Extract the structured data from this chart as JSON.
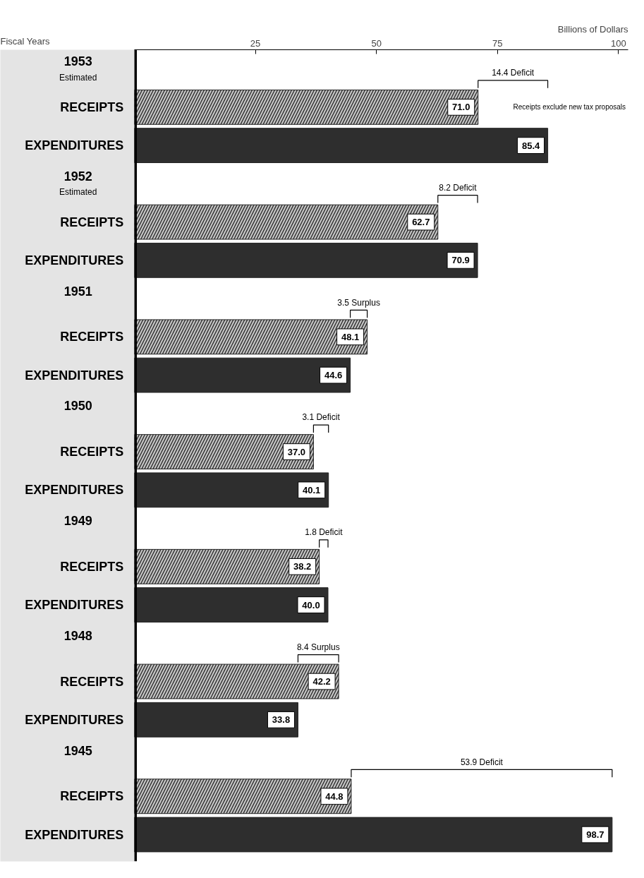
{
  "chart_data": {
    "type": "bar",
    "orientation": "horizontal",
    "xlabel": "Billions of Dollars",
    "ylabel": "Fiscal Years",
    "categories": [
      "1953\nEstimated",
      "1952\nEstimated",
      "1951",
      "1950",
      "1949",
      "1948",
      "1945"
    ],
    "series": [
      {
        "name": "RECEIPTS",
        "color": "#c8c8c8",
        "values": [
          71.0,
          62.7,
          48.1,
          37.0,
          38.2,
          42.2,
          44.8
        ],
        "value_labels": [
          "71.0",
          "62.7",
          "48.1",
          "37.0",
          "38.2",
          "42.2",
          "44.8"
        ]
      },
      {
        "name": "EXPENDITURES",
        "color": "#2e2e2e",
        "values": [
          85.4,
          70.9,
          44.6,
          40.1,
          40.0,
          33.8,
          98.7
        ],
        "value_labels": [
          "85.4",
          "70.9",
          "44.6",
          "40.1",
          "40.0",
          "33.8",
          "98.7"
        ]
      }
    ],
    "xlim": [
      0,
      102
    ],
    "xticks": [
      25,
      50,
      75,
      100
    ],
    "tick_labels": "x",
    "grid": false,
    "annotations": [
      "14.4 Deficit",
      "8.2 Deficit",
      "3.5 Surplus",
      "3.1 Deficit",
      "1.8 Deficit",
      "8.4 Surplus",
      "53.9 Deficit",
      "Receipts exclude new tax proposals"
    ]
  }
}
